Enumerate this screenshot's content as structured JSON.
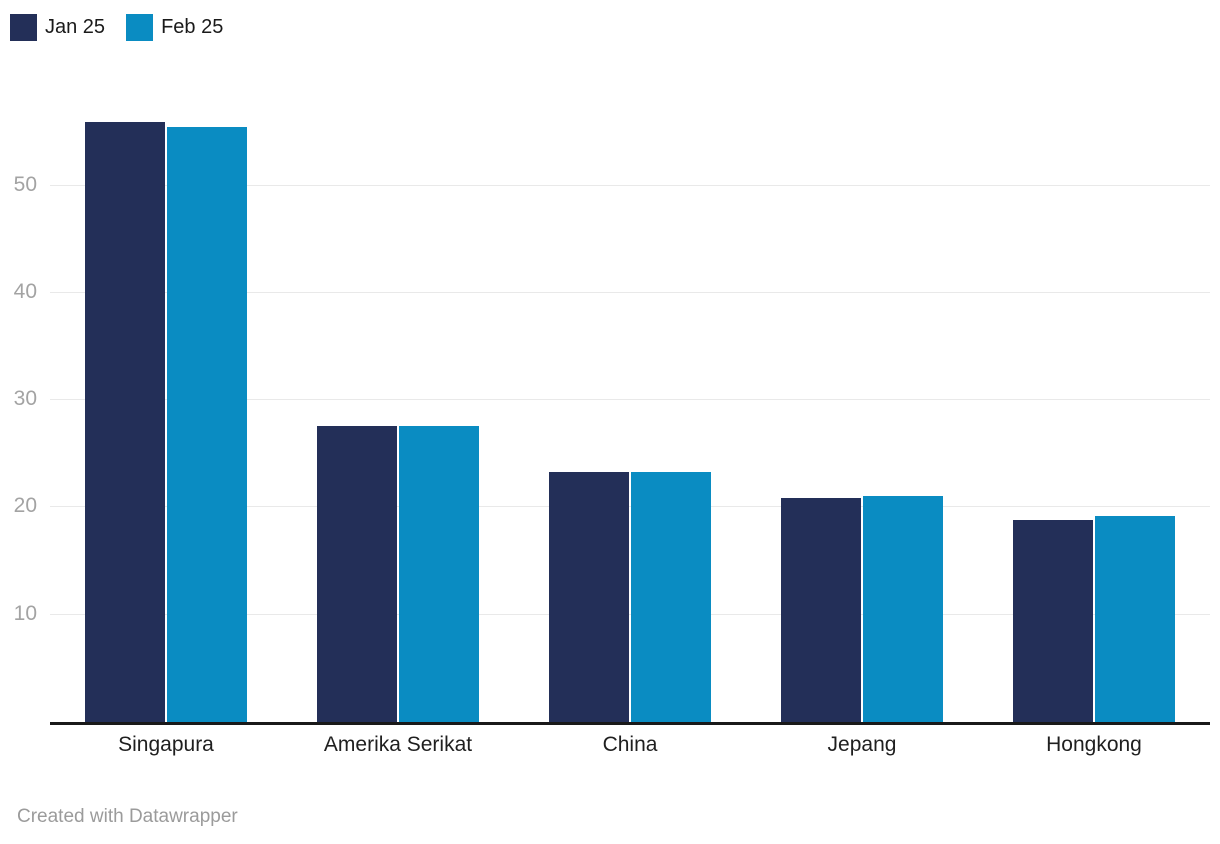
{
  "legend": {
    "items": [
      {
        "label": "Jan 25",
        "color": "#232f58"
      },
      {
        "label": "Feb 25",
        "color": "#0a8cc2"
      }
    ]
  },
  "chart_data": {
    "type": "bar",
    "title": "",
    "xlabel": "",
    "ylabel": "",
    "categories": [
      "Singapura",
      "Amerika Serikat",
      "China",
      "Jepang",
      "Hongkong"
    ],
    "series": [
      {
        "name": "Jan 25",
        "color": "#232f58",
        "values": [
          55.9,
          27.6,
          23.3,
          20.9,
          18.8
        ]
      },
      {
        "name": "Feb 25",
        "color": "#0a8cc2",
        "values": [
          55.5,
          27.6,
          23.3,
          21.1,
          19.2
        ]
      }
    ],
    "yticks": [
      10,
      20,
      30,
      40,
      50
    ],
    "ylim": [
      0,
      61.7
    ],
    "grid": true,
    "legend_position": "top-left"
  },
  "footer": {
    "credit": "Created with Datawrapper"
  }
}
